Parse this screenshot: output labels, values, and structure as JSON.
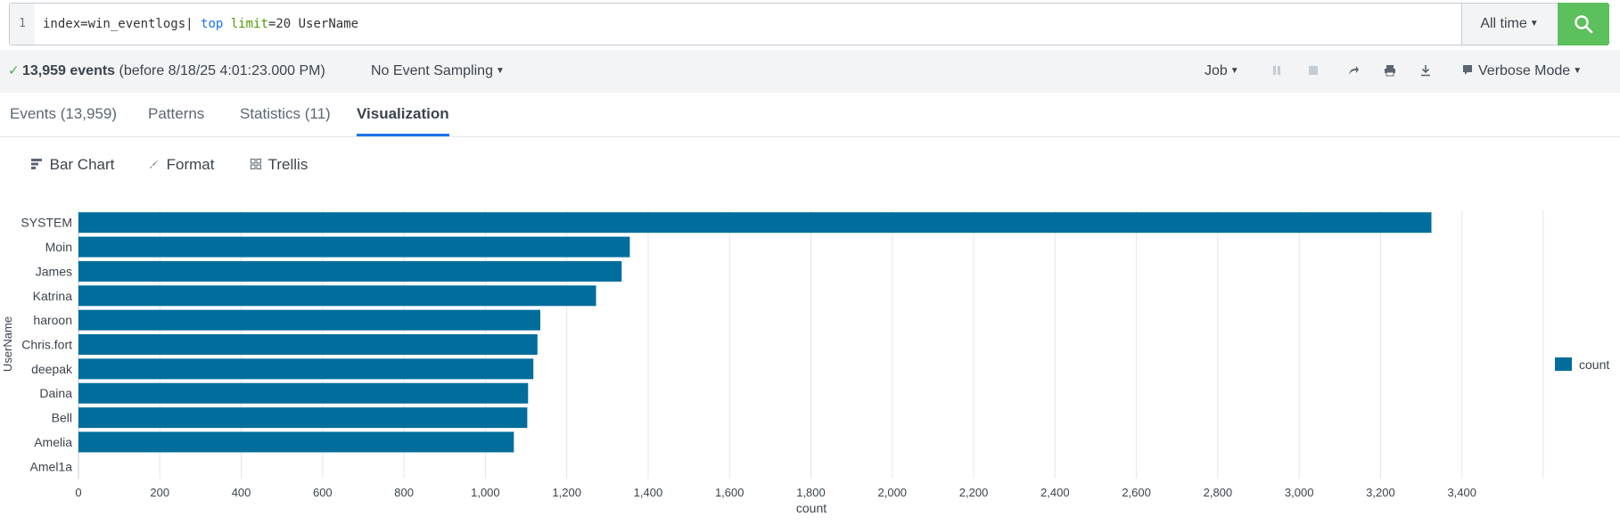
{
  "search": {
    "line_number": "1",
    "query_parts": [
      "index=win_eventlogs| ",
      "top",
      " ",
      "limit",
      "=20 UserName"
    ],
    "time_range": "All time",
    "search_icon": "search-icon"
  },
  "status": {
    "events_count": "13,959 events",
    "events_suffix": "(before 8/18/25 4:01:23.000 PM)",
    "sampling": "No Event Sampling",
    "job": "Job",
    "mode": "Verbose Mode",
    "controls": [
      "pause-icon",
      "stop-icon",
      "share-icon",
      "print-icon",
      "export-icon"
    ]
  },
  "tabs": [
    {
      "label": "Events (13,959)"
    },
    {
      "label": "Patterns"
    },
    {
      "label": "Statistics (11)"
    },
    {
      "label": "Visualization",
      "active": true
    }
  ],
  "viz_toolbar": {
    "chart_type": "Bar Chart",
    "format": "Format",
    "trellis": "Trellis"
  },
  "colors": {
    "bar": "#006d9c",
    "accent": "#1a73e8",
    "search_button": "#5cc05c"
  },
  "chart_data": {
    "type": "bar",
    "orientation": "horizontal",
    "categories": [
      "SYSTEM",
      "Moin",
      "James",
      "Katrina",
      "haroon",
      "Chris.fort",
      "deepak",
      "Daina",
      "Bell",
      "Amelia",
      "Amel1a"
    ],
    "series": [
      {
        "name": "count",
        "values": [
          3325,
          1355,
          1335,
          1272,
          1135,
          1128,
          1118,
          1105,
          1103,
          1070,
          0
        ]
      }
    ],
    "xlabel": "count",
    "ylabel": "UserName",
    "xlim": [
      0,
      3600
    ],
    "xticks": [
      "0",
      "200",
      "400",
      "600",
      "800",
      "1,000",
      "1,200",
      "1,400",
      "1,600",
      "1,800",
      "2,000",
      "2,200",
      "2,400",
      "2,600",
      "2,800",
      "3,000",
      "3,200",
      "3,400"
    ],
    "grid": true,
    "legend": "right"
  }
}
